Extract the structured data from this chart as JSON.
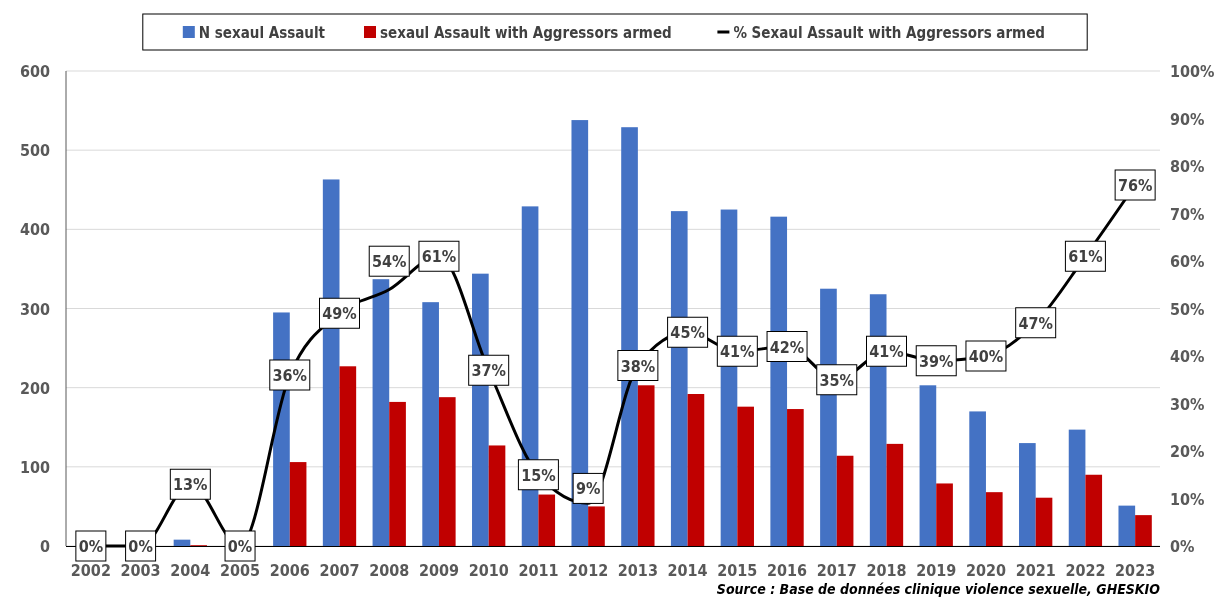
{
  "chart_data": {
    "type": "bar",
    "categories": [
      "2002",
      "2003",
      "2004",
      "2005",
      "2006",
      "2007",
      "2008",
      "2009",
      "2010",
      "2011",
      "2012",
      "2013",
      "2014",
      "2015",
      "2016",
      "2017",
      "2018",
      "2019",
      "2020",
      "2021",
      "2022",
      "2023"
    ],
    "series": [
      {
        "name": "N sexaul Assault",
        "color": "#4472c4",
        "values": [
          0,
          0,
          8,
          0,
          295,
          463,
          337,
          308,
          344,
          429,
          538,
          529,
          423,
          425,
          416,
          325,
          318,
          203,
          170,
          130,
          147,
          51
        ]
      },
      {
        "name": "sexaul Assault  with Aggressors armed",
        "color": "#c00000",
        "values": [
          0,
          0,
          1,
          0,
          106,
          227,
          182,
          188,
          127,
          65,
          50,
          203,
          192,
          176,
          173,
          114,
          129,
          79,
          68,
          61,
          90,
          39
        ]
      },
      {
        "name": "% Sexaul Assault  with Aggressors armed",
        "type": "line",
        "axis": "y2",
        "color": "#000000",
        "values": [
          0,
          0,
          13,
          0,
          36,
          49,
          54,
          61,
          37,
          15,
          9,
          38,
          45,
          41,
          42,
          35,
          41,
          39,
          40,
          47,
          61,
          76
        ],
        "value_labels": [
          "0%",
          "0%",
          "13%",
          "0%",
          "36%",
          "49%",
          "54%",
          "61%",
          "37%",
          "15%",
          "9%",
          "38%",
          "45%",
          "41%",
          "42%",
          "35%",
          "41%",
          "39%",
          "40%",
          "47%",
          "61%",
          "76%"
        ]
      }
    ],
    "ylim": [
      0,
      600
    ],
    "yticks": [
      0,
      100,
      200,
      300,
      400,
      500,
      600
    ],
    "y2lim": [
      0,
      100
    ],
    "y2ticks": [
      {
        "value": 0,
        "label": "0%"
      },
      {
        "value": 10,
        "label": "10%"
      },
      {
        "value": 20,
        "label": "20%"
      },
      {
        "value": 30,
        "label": "30%"
      },
      {
        "value": 40,
        "label": "40%"
      },
      {
        "value": 50,
        "label": "50%"
      },
      {
        "value": 60,
        "label": "60%"
      },
      {
        "value": 70,
        "label": "70%"
      },
      {
        "value": 80,
        "label": "80%"
      },
      {
        "value": 90,
        "label": "90%"
      },
      {
        "value": 100,
        "label": "100%"
      }
    ],
    "grid": "y",
    "legend": "top",
    "marker": "square",
    "line_style": "solid",
    "annotations": [
      "Source : Base de données clinique violence sexuelle, GHESKIO"
    ]
  }
}
